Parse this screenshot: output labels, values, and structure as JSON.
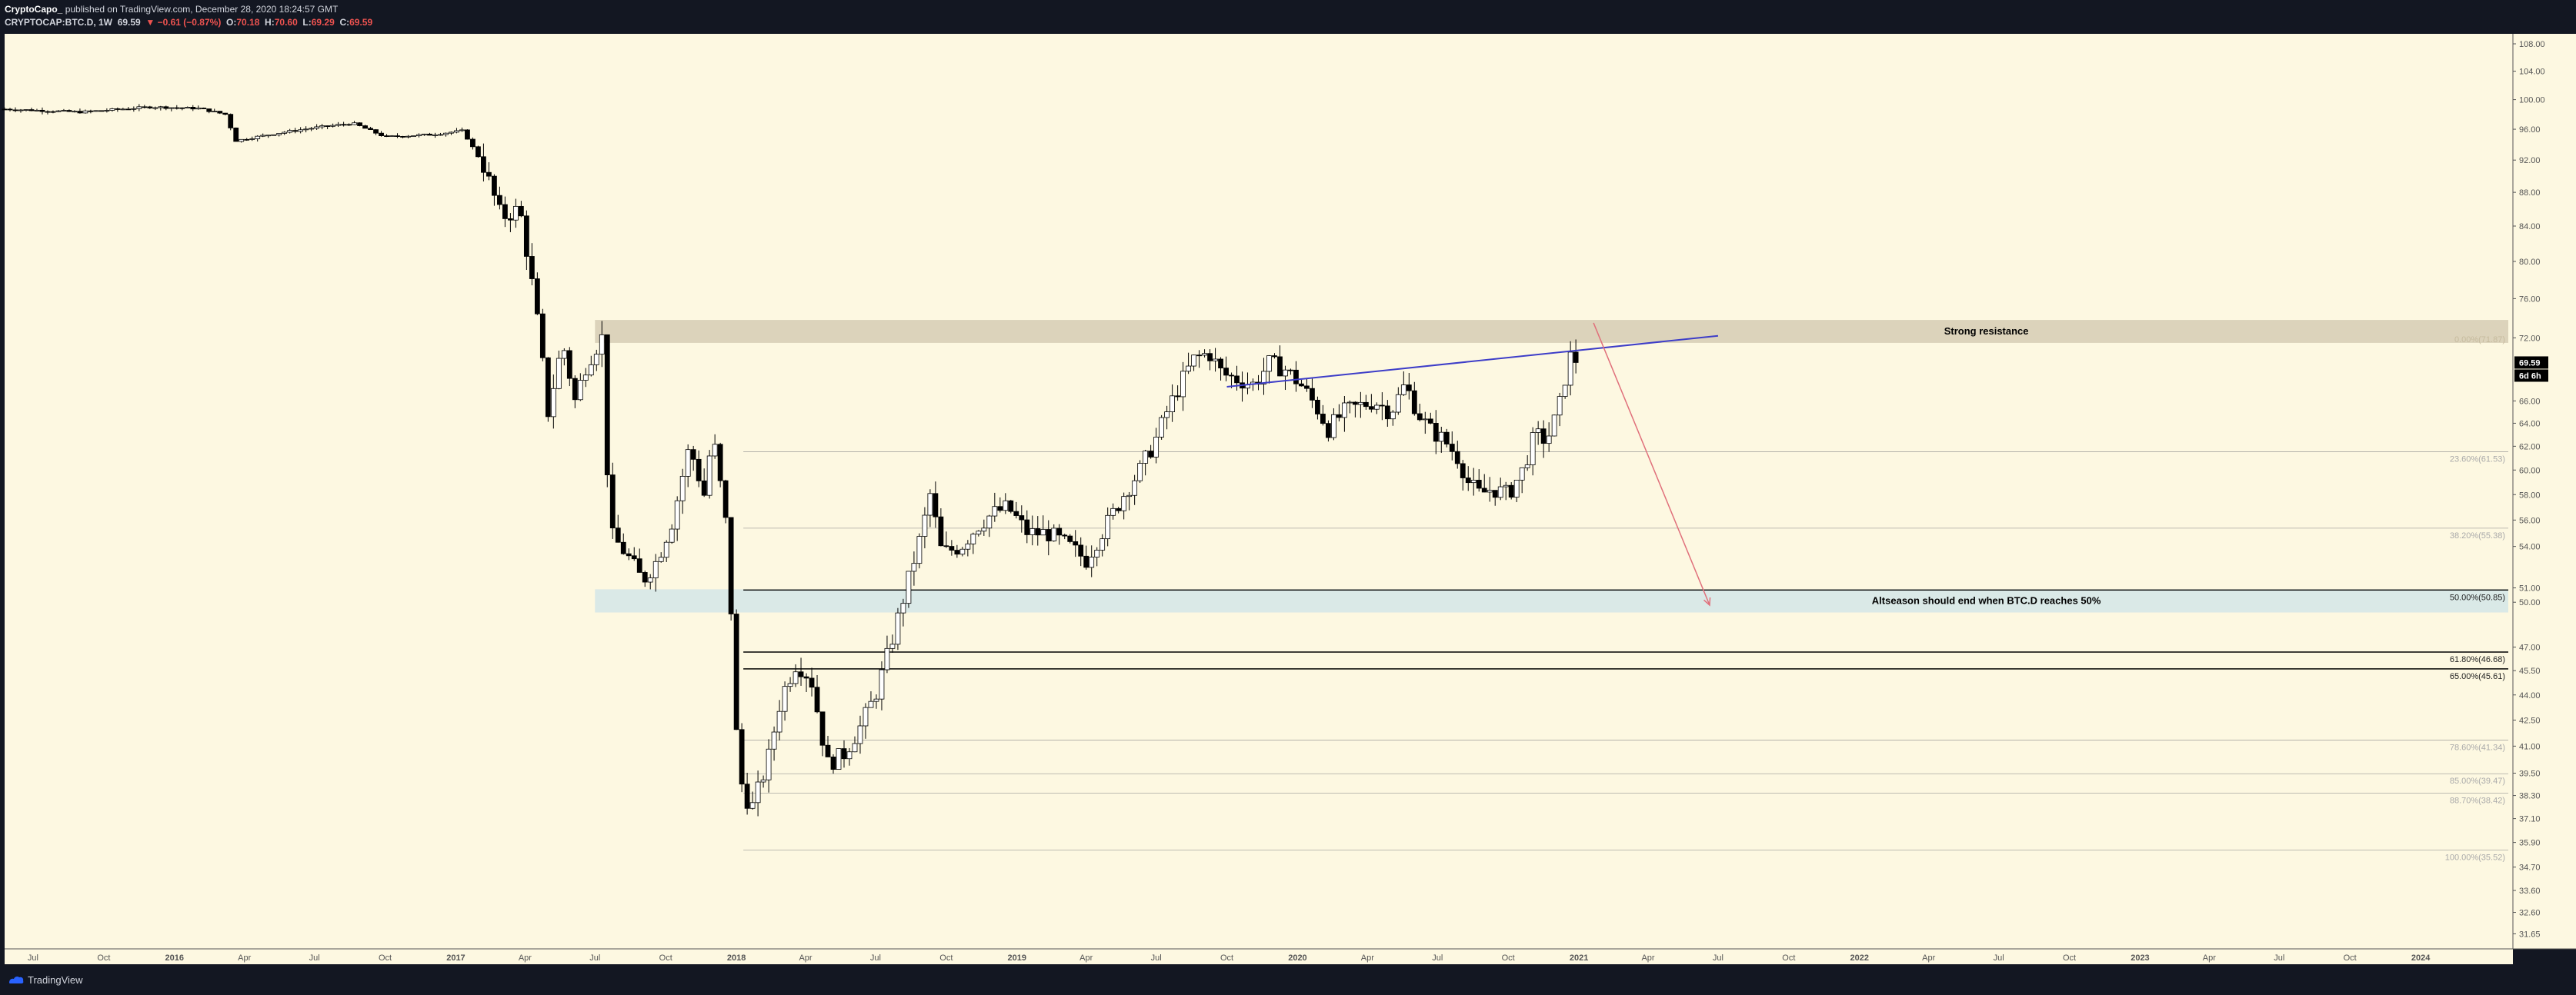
{
  "header": {
    "author": "CryptoCapo_",
    "published": "published on TradingView.com, December 28, 2020 18:24:57 GMT",
    "symbol": "CRYPTOCAP:BTC.D, 1W",
    "last": "69.59",
    "change": "▼ −0.61 (−0.87%)",
    "o_label": "O:",
    "o": "70.18",
    "h_label": "H:",
    "h": "70.60",
    "l_label": "L:",
    "l": "69.29",
    "c_label": "C:",
    "c": "69.59"
  },
  "footer": {
    "brand": "TradingView",
    "logo_icon": "tradingview-logo-icon"
  },
  "colors": {
    "background": "#fdf8e1",
    "frame": "#131722",
    "up": "#ffffff",
    "down": "#000000",
    "trendline": "#3d3dc8",
    "arrow": "#e0707b",
    "resistance_zone": "#d6cdb4",
    "support_zone": "#d4e6e8"
  },
  "chart_data": {
    "type": "candlestick",
    "title": "CRYPTOCAP:BTC.D, 1W",
    "xlabel": "",
    "ylabel": "",
    "x_range": [
      "2015-05-25",
      "2024-04-30"
    ],
    "ylim": [
      31.0,
      109.5
    ],
    "y_scale": "log",
    "grid": false,
    "y_ticks": [
      "31.65",
      "32.60",
      "33.60",
      "34.70",
      "35.90",
      "37.10",
      "38.30",
      "39.50",
      "41.00",
      "42.50",
      "44.00",
      "45.50",
      "47.00",
      "50.00",
      "51.00",
      "54.00",
      "56.00",
      "58.00",
      "60.00",
      "62.00",
      "64.00",
      "66.00",
      "69.59",
      "72.00",
      "76.00",
      "80.00",
      "84.00",
      "88.00",
      "92.00",
      "96.00",
      "100.00",
      "104.00",
      "108.00"
    ],
    "x_ticks": [
      "Jul",
      "Oct",
      "2016",
      "Apr",
      "Jul",
      "Oct",
      "2017",
      "Apr",
      "Jul",
      "Oct",
      "2018",
      "Apr",
      "Jul",
      "Oct",
      "2019",
      "Apr",
      "Jul",
      "Oct",
      "2020",
      "Apr",
      "Jul",
      "Oct",
      "2021",
      "Apr",
      "Jul",
      "Oct",
      "2022",
      "Apr",
      "Jul",
      "Oct",
      "2023",
      "Apr",
      "Jul",
      "Oct",
      "2024"
    ],
    "x_tick_dates": [
      "2015-07-01",
      "2015-10-01",
      "2016-01-01",
      "2016-04-01",
      "2016-07-01",
      "2016-10-01",
      "2017-01-01",
      "2017-04-01",
      "2017-07-01",
      "2017-10-01",
      "2018-01-01",
      "2018-04-01",
      "2018-07-01",
      "2018-10-01",
      "2019-01-01",
      "2019-04-01",
      "2019-07-01",
      "2019-10-01",
      "2020-01-01",
      "2020-04-01",
      "2020-07-01",
      "2020-10-01",
      "2021-01-01",
      "2021-04-01",
      "2021-07-01",
      "2021-10-01",
      "2022-01-01",
      "2022-04-01",
      "2022-07-01",
      "2022-10-01",
      "2023-01-01",
      "2023-04-01",
      "2023-07-01",
      "2023-10-01",
      "2024-01-01"
    ],
    "last_price_label": "69.59",
    "countdown_label": "6d 6h",
    "closes": [
      {
        "date": "2015-05-25",
        "close": 98.7
      },
      {
        "date": "2015-09-01",
        "close": 98.3
      },
      {
        "date": "2015-12-01",
        "close": 99.0
      },
      {
        "date": "2016-02-01",
        "close": 98.8
      },
      {
        "date": "2016-03-07",
        "close": 98.0
      },
      {
        "date": "2016-03-21",
        "close": 94.5
      },
      {
        "date": "2016-05-15",
        "close": 95.5
      },
      {
        "date": "2016-07-01",
        "close": 96.2
      },
      {
        "date": "2016-08-20",
        "close": 96.8
      },
      {
        "date": "2016-10-01",
        "close": 95.0
      },
      {
        "date": "2016-12-01",
        "close": 95.3
      },
      {
        "date": "2017-01-10",
        "close": 95.8
      },
      {
        "date": "2017-02-05",
        "close": 91.5
      },
      {
        "date": "2017-03-01",
        "close": 85.0
      },
      {
        "date": "2017-03-25",
        "close": 86.0
      },
      {
        "date": "2017-04-15",
        "close": 75.0
      },
      {
        "date": "2017-05-01",
        "close": 65.0
      },
      {
        "date": "2017-05-20",
        "close": 71.5
      },
      {
        "date": "2017-06-05",
        "close": 66.0
      },
      {
        "date": "2017-06-20",
        "close": 69.5
      },
      {
        "date": "2017-07-10",
        "close": 72.0
      },
      {
        "date": "2017-07-20",
        "close": 55.0
      },
      {
        "date": "2017-08-10",
        "close": 53.5
      },
      {
        "date": "2017-09-01",
        "close": 51.5
      },
      {
        "date": "2017-09-20",
        "close": 53.0
      },
      {
        "date": "2017-10-10",
        "close": 56.0
      },
      {
        "date": "2017-11-01",
        "close": 62.0
      },
      {
        "date": "2017-11-20",
        "close": 58.0
      },
      {
        "date": "2017-12-01",
        "close": 63.0
      },
      {
        "date": "2017-12-20",
        "close": 55.0
      },
      {
        "date": "2018-01-03",
        "close": 39.5
      },
      {
        "date": "2018-01-20",
        "close": 37.5
      },
      {
        "date": "2018-02-10",
        "close": 40.0
      },
      {
        "date": "2018-03-01",
        "close": 44.0
      },
      {
        "date": "2018-03-20",
        "close": 46.0
      },
      {
        "date": "2018-04-08",
        "close": 45.0
      },
      {
        "date": "2018-04-29",
        "close": 40.0
      },
      {
        "date": "2018-05-20",
        "close": 40.5
      },
      {
        "date": "2018-06-10",
        "close": 42.0
      },
      {
        "date": "2018-07-01",
        "close": 44.0
      },
      {
        "date": "2018-07-20",
        "close": 47.0
      },
      {
        "date": "2018-08-10",
        "close": 51.0
      },
      {
        "date": "2018-08-30",
        "close": 55.0
      },
      {
        "date": "2018-09-10",
        "close": 58.0
      },
      {
        "date": "2018-09-25",
        "close": 53.5
      },
      {
        "date": "2018-10-20",
        "close": 54.0
      },
      {
        "date": "2018-11-10",
        "close": 55.5
      },
      {
        "date": "2018-11-30",
        "close": 56.5
      },
      {
        "date": "2018-12-20",
        "close": 57.0
      },
      {
        "date": "2019-01-15",
        "close": 55.0
      },
      {
        "date": "2019-02-10",
        "close": 55.0
      },
      {
        "date": "2019-03-10",
        "close": 54.0
      },
      {
        "date": "2019-04-01",
        "close": 53.0
      },
      {
        "date": "2019-05-01",
        "close": 56.0
      },
      {
        "date": "2019-05-20",
        "close": 58.0
      },
      {
        "date": "2019-06-10",
        "close": 60.0
      },
      {
        "date": "2019-06-30",
        "close": 62.5
      },
      {
        "date": "2019-07-15",
        "close": 65.0
      },
      {
        "date": "2019-08-01",
        "close": 67.5
      },
      {
        "date": "2019-08-20",
        "close": 70.0
      },
      {
        "date": "2019-09-08",
        "close": 70.5
      },
      {
        "date": "2019-09-25",
        "close": 68.5
      },
      {
        "date": "2019-10-15",
        "close": 68.0
      },
      {
        "date": "2019-11-05",
        "close": 67.5
      },
      {
        "date": "2019-11-25",
        "close": 69.5
      },
      {
        "date": "2019-12-15",
        "close": 69.0
      },
      {
        "date": "2020-01-05",
        "close": 67.5
      },
      {
        "date": "2020-01-25",
        "close": 65.5
      },
      {
        "date": "2020-02-10",
        "close": 63.5
      },
      {
        "date": "2020-03-01",
        "close": 65.0
      },
      {
        "date": "2020-03-20",
        "close": 65.5
      },
      {
        "date": "2020-04-10",
        "close": 66.0
      },
      {
        "date": "2020-05-01",
        "close": 65.0
      },
      {
        "date": "2020-05-20",
        "close": 67.5
      },
      {
        "date": "2020-06-05",
        "close": 65.0
      },
      {
        "date": "2020-06-20",
        "close": 63.5
      },
      {
        "date": "2020-07-10",
        "close": 62.5
      },
      {
        "date": "2020-07-28",
        "close": 61.0
      },
      {
        "date": "2020-08-10",
        "close": 59.0
      },
      {
        "date": "2020-08-25",
        "close": 58.0
      },
      {
        "date": "2020-09-10",
        "close": 58.5
      },
      {
        "date": "2020-10-01",
        "close": 58.0
      },
      {
        "date": "2020-10-20",
        "close": 60.0
      },
      {
        "date": "2020-11-05",
        "close": 63.0
      },
      {
        "date": "2020-11-20",
        "close": 62.5
      },
      {
        "date": "2020-12-05",
        "close": 65.0
      },
      {
        "date": "2020-12-20",
        "close": 70.2
      },
      {
        "date": "2020-12-28",
        "close": 69.59
      }
    ],
    "annotations": [
      {
        "type": "zone",
        "label": "Strong resistance",
        "from": 71.5,
        "to": 73.8
      },
      {
        "type": "zone",
        "label": "Altseason should end when BTC.D reaches 50%",
        "from": 49.3,
        "to": 50.9
      },
      {
        "type": "trendline",
        "from": {
          "date": "2019-10-01",
          "value": 67.3
        },
        "to": {
          "date": "2021-07-01",
          "value": 72.2
        }
      },
      {
        "type": "arrow",
        "from": {
          "date": "2021-01-20",
          "value": 73.5
        },
        "to": {
          "date": "2021-06-20",
          "value": 49.8
        }
      }
    ],
    "fib_levels": [
      {
        "label": "23.60%(61.53)",
        "value": 61.53
      },
      {
        "label": "38.20%(55.38)",
        "value": 55.38
      },
      {
        "label": "50.00%(50.85)",
        "value": 50.85
      },
      {
        "label": "61.80%(46.68)",
        "value": 46.68
      },
      {
        "label": "65.00%(45.61)",
        "value": 45.61
      },
      {
        "label": "78.60%(41.34)",
        "value": 41.34
      },
      {
        "label": "85.00%(39.47)",
        "value": 39.47
      },
      {
        "label": "88.70%(38.42)",
        "value": 38.42
      },
      {
        "label": "100.00%(35.52)",
        "value": 35.52
      }
    ],
    "fib_zero_label": "0.00%(71.87)"
  }
}
